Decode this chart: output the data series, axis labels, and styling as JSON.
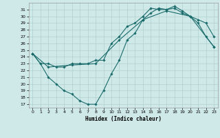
{
  "xlabel": "Humidex (Indice chaleur)",
  "background_color": "#cfe8e8",
  "grid_color": "#b0d0d0",
  "line_color": "#1a6b6b",
  "xlim": [
    -0.5,
    23.5
  ],
  "ylim": [
    16.5,
    32.0
  ],
  "yticks": [
    17,
    18,
    19,
    20,
    21,
    22,
    23,
    24,
    25,
    26,
    27,
    28,
    29,
    30,
    31
  ],
  "xticks": [
    0,
    1,
    2,
    3,
    4,
    5,
    6,
    7,
    8,
    9,
    10,
    11,
    12,
    13,
    14,
    15,
    16,
    17,
    18,
    19,
    20,
    21,
    22,
    23
  ],
  "line1_x": [
    0,
    1,
    2,
    3,
    4,
    5,
    6,
    7,
    8,
    9,
    10,
    11,
    12,
    13,
    14,
    15,
    16,
    17,
    18,
    19,
    20,
    21,
    22,
    23
  ],
  "line1_y": [
    24.5,
    23.0,
    23.0,
    22.5,
    22.5,
    23.0,
    23.0,
    23.0,
    23.5,
    23.5,
    26.0,
    27.0,
    28.5,
    29.0,
    30.0,
    31.2,
    31.0,
    31.0,
    31.2,
    30.5,
    30.0,
    29.0,
    27.0,
    25.5
  ],
  "line2_x": [
    0,
    1,
    2,
    3,
    4,
    5,
    6,
    7,
    8,
    9,
    10,
    11,
    12,
    13,
    14,
    15,
    16,
    17,
    18,
    19,
    20,
    21,
    22,
    23
  ],
  "line2_y": [
    24.5,
    23.0,
    21.0,
    20.0,
    19.0,
    18.5,
    17.5,
    17.0,
    17.0,
    19.0,
    21.5,
    23.5,
    26.5,
    27.5,
    29.5,
    30.5,
    31.2,
    31.0,
    31.5,
    30.8,
    30.0,
    29.5,
    29.0,
    27.0
  ],
  "line3_x": [
    0,
    2,
    5,
    8,
    11,
    14,
    17,
    20,
    23
  ],
  "line3_y": [
    24.5,
    22.5,
    22.8,
    23.0,
    26.5,
    29.5,
    30.8,
    30.0,
    25.5
  ]
}
